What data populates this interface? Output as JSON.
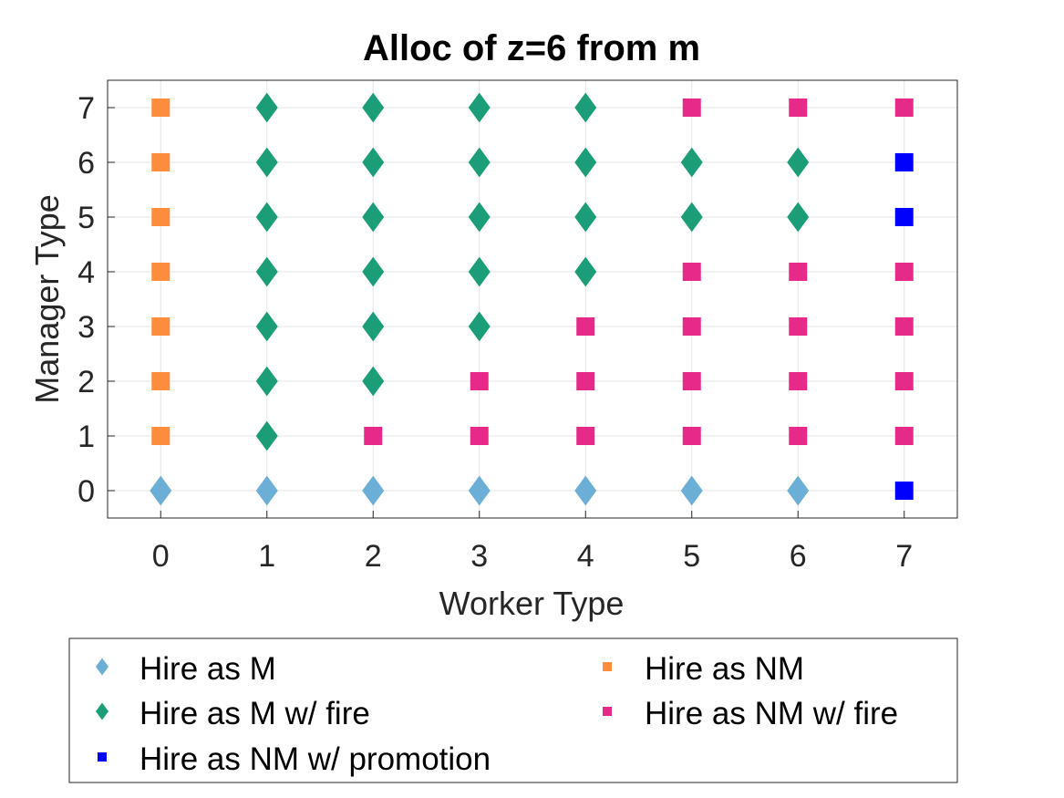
{
  "chart_data": {
    "type": "scatter",
    "title": "Alloc of z=6 from m",
    "xlabel": "Worker Type",
    "ylabel": "Manager Type",
    "xlim": [
      -0.5,
      7.5
    ],
    "ylim": [
      -0.5,
      7.5
    ],
    "xticks": [
      "0",
      "1",
      "2",
      "3",
      "4",
      "5",
      "6",
      "7"
    ],
    "yticks": [
      "0",
      "1",
      "2",
      "3",
      "4",
      "5",
      "6",
      "7"
    ],
    "grid": true,
    "legend_placement": "bottom-outside",
    "series": [
      {
        "name": "Hire as M",
        "marker": "diamond",
        "color": "#6BAED6",
        "points": [
          [
            0,
            0
          ],
          [
            1,
            0
          ],
          [
            2,
            0
          ],
          [
            3,
            0
          ],
          [
            4,
            0
          ],
          [
            5,
            0
          ],
          [
            6,
            0
          ]
        ]
      },
      {
        "name": "Hire as M w/ fire",
        "marker": "diamond",
        "color": "#1B9E77",
        "points": [
          [
            1,
            1
          ],
          [
            1,
            2
          ],
          [
            1,
            3
          ],
          [
            1,
            4
          ],
          [
            1,
            5
          ],
          [
            1,
            6
          ],
          [
            1,
            7
          ],
          [
            2,
            2
          ],
          [
            2,
            3
          ],
          [
            2,
            4
          ],
          [
            2,
            5
          ],
          [
            2,
            6
          ],
          [
            2,
            7
          ],
          [
            3,
            3
          ],
          [
            3,
            4
          ],
          [
            3,
            5
          ],
          [
            3,
            6
          ],
          [
            3,
            7
          ],
          [
            4,
            4
          ],
          [
            4,
            5
          ],
          [
            4,
            6
          ],
          [
            4,
            7
          ],
          [
            5,
            5
          ],
          [
            5,
            6
          ],
          [
            6,
            5
          ],
          [
            6,
            6
          ]
        ]
      },
      {
        "name": "Hire as NM w/ promotion",
        "marker": "square",
        "color": "#0000FF",
        "points": [
          [
            7,
            0
          ],
          [
            7,
            5
          ],
          [
            7,
            6
          ]
        ]
      },
      {
        "name": "Hire as NM",
        "marker": "square",
        "color": "#FD8D3C",
        "points": [
          [
            0,
            1
          ],
          [
            0,
            2
          ],
          [
            0,
            3
          ],
          [
            0,
            4
          ],
          [
            0,
            5
          ],
          [
            0,
            6
          ],
          [
            0,
            7
          ]
        ]
      },
      {
        "name": "Hire as NM w/ fire",
        "marker": "square",
        "color": "#E7298A",
        "points": [
          [
            2,
            1
          ],
          [
            3,
            1
          ],
          [
            3,
            2
          ],
          [
            4,
            1
          ],
          [
            4,
            2
          ],
          [
            4,
            3
          ],
          [
            5,
            1
          ],
          [
            5,
            2
          ],
          [
            5,
            3
          ],
          [
            5,
            4
          ],
          [
            5,
            7
          ],
          [
            6,
            1
          ],
          [
            6,
            2
          ],
          [
            6,
            3
          ],
          [
            6,
            4
          ],
          [
            6,
            7
          ],
          [
            7,
            1
          ],
          [
            7,
            2
          ],
          [
            7,
            3
          ],
          [
            7,
            4
          ],
          [
            7,
            7
          ]
        ]
      }
    ],
    "legend_order": [
      "Hire as M",
      "Hire as NM",
      "Hire as M w/ fire",
      "Hire as NM w/ fire",
      "Hire as NM w/ promotion"
    ]
  }
}
